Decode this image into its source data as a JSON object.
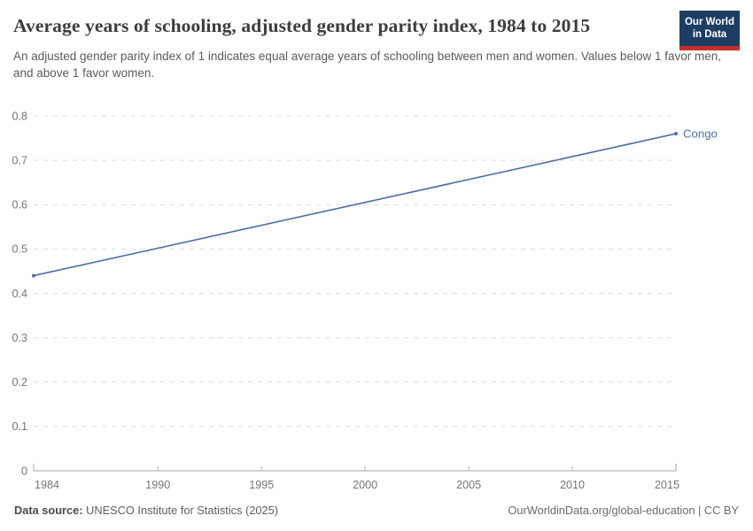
{
  "header": {
    "title": "Average years of schooling, adjusted gender parity index, 1984 to 2015",
    "subtitle": "An adjusted gender parity index of 1 indicates equal average years of schooling between men and women. Values below 1 favor men, and above 1 favor women.",
    "logo": {
      "line1": "Our World",
      "line2": "in Data"
    }
  },
  "footer": {
    "source_label": "Data source:",
    "source_value": "UNESCO Institute for Statistics (2025)",
    "link": "OurWorldinData.org/global-education | CC BY"
  },
  "colors": {
    "series_blue": "#4C6EA9",
    "gridline": "#dcdcdc",
    "axis_line": "#a5a5a5",
    "tick_mark": "#b0b0b0",
    "axis_text": "#757575",
    "logo_navy": "#1d3d63",
    "logo_red": "#c5302b"
  },
  "chart_data": {
    "type": "line",
    "title": "Average years of schooling, adjusted gender parity index, 1984 to 2015",
    "xlabel": "",
    "ylabel": "",
    "xlim": [
      1984,
      2015
    ],
    "ylim": [
      0,
      0.8
    ],
    "grid": "horizontal-dashed",
    "legend_position": "end-of-line",
    "x_ticks": [
      {
        "v": 1984,
        "label": "1984"
      },
      {
        "v": 1990,
        "label": "1990"
      },
      {
        "v": 1995,
        "label": "1995"
      },
      {
        "v": 2000,
        "label": "2000"
      },
      {
        "v": 2005,
        "label": "2005"
      },
      {
        "v": 2010,
        "label": "2010"
      },
      {
        "v": 2015,
        "label": "2015"
      }
    ],
    "y_ticks": [
      {
        "v": 0,
        "label": "0"
      },
      {
        "v": 0.1,
        "label": "0.1"
      },
      {
        "v": 0.2,
        "label": "0.2"
      },
      {
        "v": 0.3,
        "label": "0.3"
      },
      {
        "v": 0.4,
        "label": "0.4"
      },
      {
        "v": 0.5,
        "label": "0.5"
      },
      {
        "v": 0.6,
        "label": "0.6"
      },
      {
        "v": 0.7,
        "label": "0.7"
      },
      {
        "v": 0.8,
        "label": "0.8"
      }
    ],
    "series": [
      {
        "name": "Congo",
        "color": "#4C6EA9",
        "markers": "endpoints",
        "points": [
          {
            "x": 1984,
            "y": 0.44
          },
          {
            "x": 2015,
            "y": 0.76
          }
        ]
      }
    ]
  }
}
